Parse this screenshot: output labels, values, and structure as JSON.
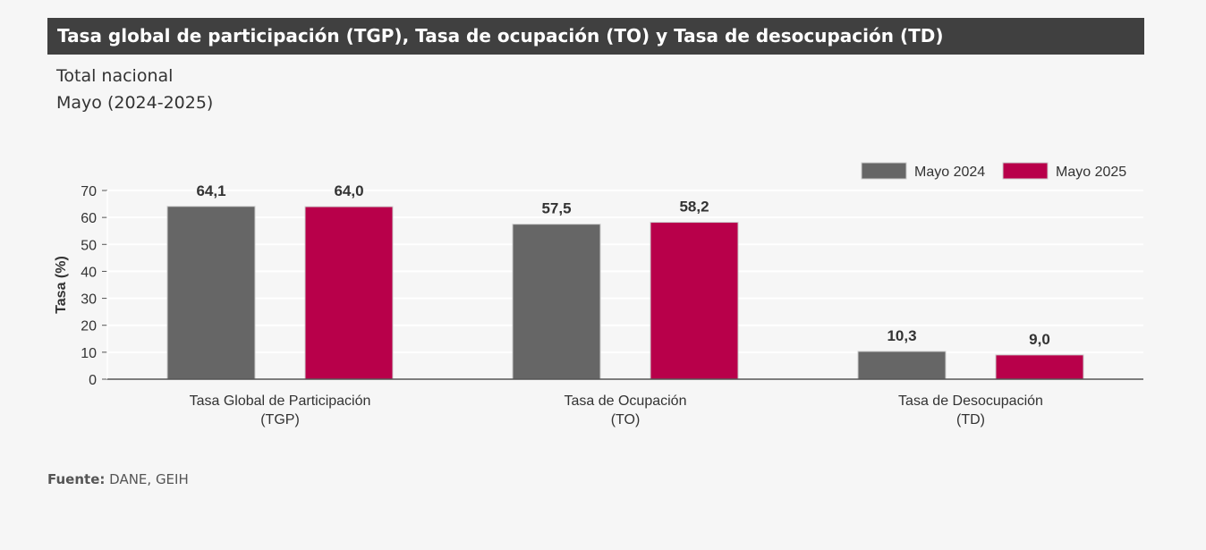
{
  "header": {
    "title": "Tasa global de participación (TGP), Tasa de ocupación (TO) y Tasa de desocupación (TD)",
    "subtitle_1": "Total nacional",
    "subtitle_2": "Mayo (2024-2025)"
  },
  "footer": {
    "source_label": "Fuente:",
    "source_value": "DANE, GEIH"
  },
  "chart_data": {
    "type": "bar",
    "categories": [
      [
        "Tasa Global de Participación",
        "(TGP)"
      ],
      [
        "Tasa de Ocupación",
        "(TO)"
      ],
      [
        "Tasa de Desocupación",
        "(TD)"
      ]
    ],
    "series": [
      {
        "name": "Mayo 2024",
        "color": "#666666",
        "values": [
          64.1,
          57.5,
          10.3
        ],
        "labels": [
          "64,1",
          "57,5",
          "10,3"
        ]
      },
      {
        "name": "Mayo 2025",
        "color": "#b8004a",
        "values": [
          64.0,
          58.2,
          9.0
        ],
        "labels": [
          "64,0",
          "58,2",
          "9,0"
        ]
      }
    ],
    "ylabel": "Tasa (%)",
    "xlabel": "",
    "ylim": [
      0,
      70
    ],
    "yticks": [
      0,
      10,
      20,
      30,
      40,
      50,
      60,
      70
    ],
    "grid": true,
    "legend": "top-right"
  }
}
